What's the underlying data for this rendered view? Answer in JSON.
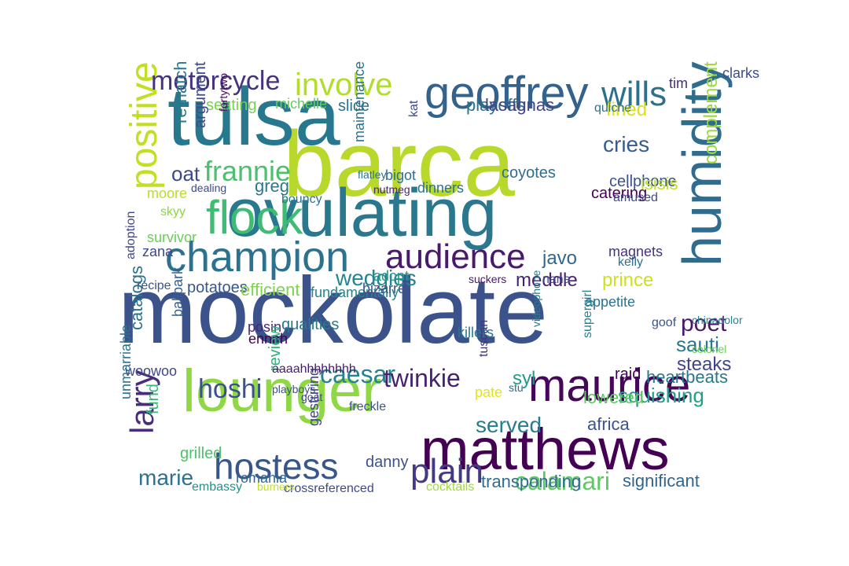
{
  "palette": {
    "navy": "#3b528b",
    "teal": "#21918c",
    "green": "#5ec962",
    "yellow": "#c8dc28",
    "purple": "#440154",
    "lime": "#9ed93a"
  },
  "words": [
    {
      "text": "mockolate",
      "color": "#3b528b",
      "rotated": false
    },
    {
      "text": "barca",
      "color": "#b8d82c",
      "rotated": false
    },
    {
      "text": "tulsa",
      "color": "#27778e",
      "rotated": false
    },
    {
      "text": "ovulating",
      "color": "#2a788e",
      "rotated": false
    },
    {
      "text": "lounger",
      "color": "#8fd744",
      "rotated": false
    },
    {
      "text": "matthews",
      "color": "#440154",
      "rotated": false
    },
    {
      "text": "maurice",
      "color": "#46075a",
      "rotated": false
    },
    {
      "text": "humidity",
      "color": "#2f6c8e",
      "rotated": true
    },
    {
      "text": "geoffrey",
      "color": "#33638d",
      "rotated": false
    },
    {
      "text": "champion",
      "color": "#2c728e",
      "rotated": false
    },
    {
      "text": "positive",
      "color": "#c2df23",
      "rotated": true
    },
    {
      "text": "flock",
      "color": "#3ebc74",
      "rotated": false
    },
    {
      "text": "hostess",
      "color": "#39568c",
      "rotated": false
    },
    {
      "text": "audience",
      "color": "#481a6c",
      "rotated": false
    },
    {
      "text": "involve",
      "color": "#b2dd2d",
      "rotated": false
    },
    {
      "text": "frannie",
      "color": "#4ac16d",
      "rotated": false
    },
    {
      "text": "motorcycle",
      "color": "#46327e",
      "rotated": false
    },
    {
      "text": "plain",
      "color": "#443983",
      "rotated": false
    },
    {
      "text": "larry",
      "color": "#472d7b",
      "rotated": true
    },
    {
      "text": "wills",
      "color": "#2d708e",
      "rotated": false
    },
    {
      "text": "caesar",
      "color": "#26828e",
      "rotated": false
    },
    {
      "text": "hoshi",
      "color": "#3b528b",
      "rotated": false
    },
    {
      "text": "twinkie",
      "color": "#482173",
      "rotated": false
    },
    {
      "text": "marie",
      "color": "#2c728e",
      "rotated": false
    },
    {
      "text": "calamari",
      "color": "#5ec962",
      "rotated": false
    },
    {
      "text": "complement",
      "color": "#9bd93c",
      "rotated": true
    },
    {
      "text": "poet",
      "color": "#481769",
      "rotated": false
    },
    {
      "text": "wedgies",
      "color": "#25848e",
      "rotated": false
    },
    {
      "text": "oat",
      "color": "#3e4989",
      "rotated": false
    },
    {
      "text": "cries",
      "color": "#365c8d",
      "rotated": false
    },
    {
      "text": "served",
      "color": "#287c8e",
      "rotated": false
    },
    {
      "text": "squishing",
      "color": "#1fa088",
      "rotated": false
    },
    {
      "text": "sauti",
      "color": "#2a788e",
      "rotated": false
    },
    {
      "text": "steaks",
      "color": "#414487",
      "rotated": false
    },
    {
      "text": "transponding",
      "color": "#2e6e8e",
      "rotated": false
    },
    {
      "text": "significant",
      "color": "#32658e",
      "rotated": false
    },
    {
      "text": "prince",
      "color": "#cde11d",
      "rotated": false
    },
    {
      "text": "javo",
      "color": "#31688e",
      "rotated": false
    },
    {
      "text": "meddle",
      "color": "#481f70",
      "rotated": false
    },
    {
      "text": "fined",
      "color": "#d5e21a",
      "rotated": false
    },
    {
      "text": "catering",
      "color": "#440154",
      "rotated": false
    },
    {
      "text": "playoffs",
      "color": "#2c738e",
      "rotated": false
    },
    {
      "text": "lasagnas",
      "color": "#3f4788",
      "rotated": false
    },
    {
      "text": "seating",
      "color": "#7ad151",
      "rotated": false
    },
    {
      "text": "michelle",
      "color": "#65cb5e",
      "rotated": false
    },
    {
      "text": "slice",
      "color": "#2d708e",
      "rotated": false
    },
    {
      "text": "rematch",
      "color": "#29798e",
      "rotated": true
    },
    {
      "text": "argument",
      "color": "#3e4989",
      "rotated": true
    },
    {
      "text": "fortytwo",
      "color": "#46085c",
      "rotated": true
    },
    {
      "text": "greg",
      "color": "#2a778e",
      "rotated": false
    },
    {
      "text": "moore",
      "color": "#b8de29",
      "rotated": false
    },
    {
      "text": "skyy",
      "color": "#8cd646",
      "rotated": false
    },
    {
      "text": "survivor",
      "color": "#6ccd5a",
      "rotated": false
    },
    {
      "text": "zana",
      "color": "#3f4788",
      "rotated": false
    },
    {
      "text": "adoption",
      "color": "#404688",
      "rotated": true
    },
    {
      "text": "recipe",
      "color": "#3a548c",
      "rotated": false
    },
    {
      "text": "potatoes",
      "color": "#39568c",
      "rotated": false
    },
    {
      "text": "efficient",
      "color": "#7fd34e",
      "rotated": false
    },
    {
      "text": "catalogs",
      "color": "#2c718e",
      "rotated": true
    },
    {
      "text": "ballpark",
      "color": "#355e8d",
      "rotated": true
    },
    {
      "text": "posin",
      "color": "#482878",
      "rotated": false
    },
    {
      "text": "ennnh",
      "color": "#440154",
      "rotated": false
    },
    {
      "text": "qualities",
      "color": "#2a788e",
      "rotated": false
    },
    {
      "text": "fundamentally",
      "color": "#25848e",
      "rotated": false
    },
    {
      "text": "woowoo",
      "color": "#3f4788",
      "rotated": false
    },
    {
      "text": "fund",
      "color": "#35b779",
      "rotated": true
    },
    {
      "text": "grilled",
      "color": "#4cc26c",
      "rotated": false
    },
    {
      "text": "unmarriable",
      "color": "#2d718e",
      "rotated": true
    },
    {
      "text": "review",
      "color": "#2db27d",
      "rotated": true
    },
    {
      "text": "gesturing",
      "color": "#414487",
      "rotated": true
    },
    {
      "text": "danny",
      "color": "#3b528b",
      "rotated": false
    },
    {
      "text": "romania",
      "color": "#31688e",
      "rotated": false
    },
    {
      "text": "embassy",
      "color": "#21918c",
      "rotated": false
    },
    {
      "text": "crossreferenced",
      "color": "#3e4a89",
      "rotated": false
    },
    {
      "text": "cocktails",
      "color": "#a2da37",
      "rotated": false
    },
    {
      "text": "burners",
      "color": "#bddf26",
      "rotated": false
    },
    {
      "text": "africa",
      "color": "#3b528b",
      "rotated": false
    },
    {
      "text": "lowered",
      "color": "#5ec962",
      "rotated": false
    },
    {
      "text": "heartbeats",
      "color": "#2a778e",
      "rotated": false
    },
    {
      "text": "raid",
      "color": "#440154",
      "rotated": false
    },
    {
      "text": "syl",
      "color": "#1e9d89",
      "rotated": false
    },
    {
      "text": "coyotes",
      "color": "#2e6f8e",
      "rotated": false
    },
    {
      "text": "dinners",
      "color": "#2c728e",
      "rotated": false
    },
    {
      "text": "cellphone",
      "color": "#3b528b",
      "rotated": false
    },
    {
      "text": "isisis",
      "color": "#c0df25",
      "rotated": false
    },
    {
      "text": "amused",
      "color": "#3e4a89",
      "rotated": false
    },
    {
      "text": "maintenance",
      "color": "#2b748e",
      "rotated": true
    },
    {
      "text": "bigot",
      "color": "#2d708e",
      "rotated": false
    },
    {
      "text": "nana",
      "color": "#3e4989",
      "rotated": false
    },
    {
      "text": "tim",
      "color": "#472c7a",
      "rotated": false
    },
    {
      "text": "quiche",
      "color": "#2e6e8e",
      "rotated": false
    },
    {
      "text": "clarks",
      "color": "#3d4d8a",
      "rotated": false
    },
    {
      "text": "adopt",
      "color": "#1f978b",
      "rotated": false
    },
    {
      "text": "bizarre",
      "color": "#3b528b",
      "rotated": false
    },
    {
      "text": "kelly",
      "color": "#2d708e",
      "rotated": false
    },
    {
      "text": "magnets",
      "color": "#46327e",
      "rotated": false
    },
    {
      "text": "appetite",
      "color": "#2c728e",
      "rotated": false
    },
    {
      "text": "chinadolor",
      "color": "#24868e",
      "rotated": false
    },
    {
      "text": "colonel",
      "color": "#6ccd5a",
      "rotated": false
    },
    {
      "text": "goof",
      "color": "#3b528b",
      "rotated": false
    },
    {
      "text": "supergirl",
      "color": "#26828e",
      "rotated": true
    },
    {
      "text": "videophone",
      "color": "#2a788e",
      "rotated": true
    },
    {
      "text": "pate",
      "color": "#e5e419",
      "rotated": false
    },
    {
      "text": "killers",
      "color": "#2a788e",
      "rotated": false
    },
    {
      "text": "tuscan",
      "color": "#46337f",
      "rotated": true
    },
    {
      "text": "suckers",
      "color": "#481769",
      "rotated": false
    },
    {
      "text": "aaaahhhhhhhh",
      "color": "#481a6c",
      "rotated": false
    },
    {
      "text": "freckle",
      "color": "#3b528b",
      "rotated": false
    },
    {
      "text": "goat",
      "color": "#3e4a89",
      "rotated": false
    },
    {
      "text": "playboys",
      "color": "#3b528b",
      "rotated": false
    },
    {
      "text": "stu",
      "color": "#2e6e8e",
      "rotated": false
    },
    {
      "text": "dealing",
      "color": "#3e4a89",
      "rotated": false
    },
    {
      "text": "nutmeg",
      "color": "#482576",
      "rotated": false
    },
    {
      "text": "bouncy",
      "color": "#2c728e",
      "rotated": false
    },
    {
      "text": "flatley",
      "color": "#2c738e",
      "rotated": false
    },
    {
      "text": "kat",
      "color": "#3e4a89",
      "rotated": true
    }
  ]
}
